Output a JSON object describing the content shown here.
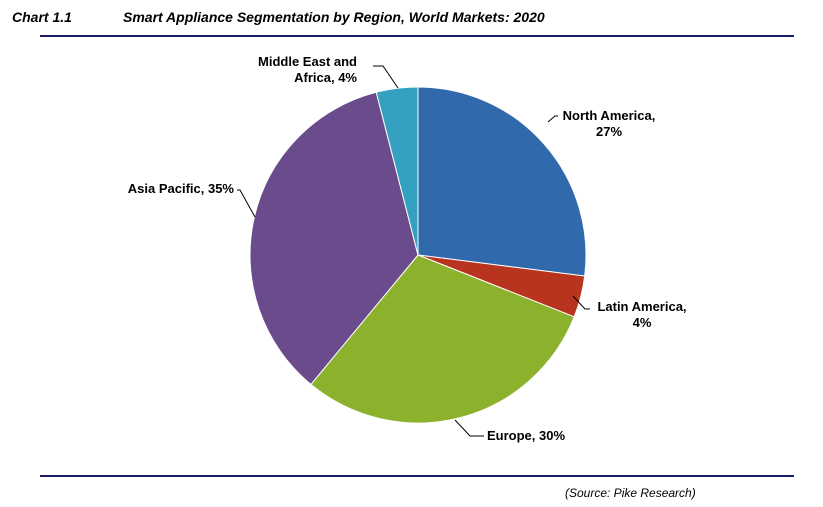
{
  "header": {
    "chart_number": "Chart 1.1",
    "title": "Smart Appliance Segmentation by Region, World Markets: 2020"
  },
  "footer": {
    "source": "(Source: Pike Research)"
  },
  "chart_data": {
    "type": "pie",
    "title": "Smart Appliance Segmentation by Region, World Markets: 2020",
    "slices": [
      {
        "name": "North America",
        "value": 27,
        "color": "#3169ad",
        "label_lines": [
          "North America,",
          "27%"
        ]
      },
      {
        "name": "Latin America",
        "value": 4,
        "color": "#b8341f",
        "label_lines": [
          "Latin America,",
          "4%"
        ]
      },
      {
        "name": "Europe",
        "value": 30,
        "color": "#8bb12d",
        "label_lines": [
          "Europe, 30%"
        ]
      },
      {
        "name": "Asia Pacific",
        "value": 35,
        "color": "#6a4b8b",
        "label_lines": [
          "Asia Pacific, 35%"
        ]
      },
      {
        "name": "Middle East and Africa",
        "value": 4,
        "color": "#33a1bf",
        "label_lines": [
          "Middle East and",
          "Africa, 4%"
        ]
      }
    ],
    "legend": "none",
    "data_labels": "outside with leader lines"
  }
}
